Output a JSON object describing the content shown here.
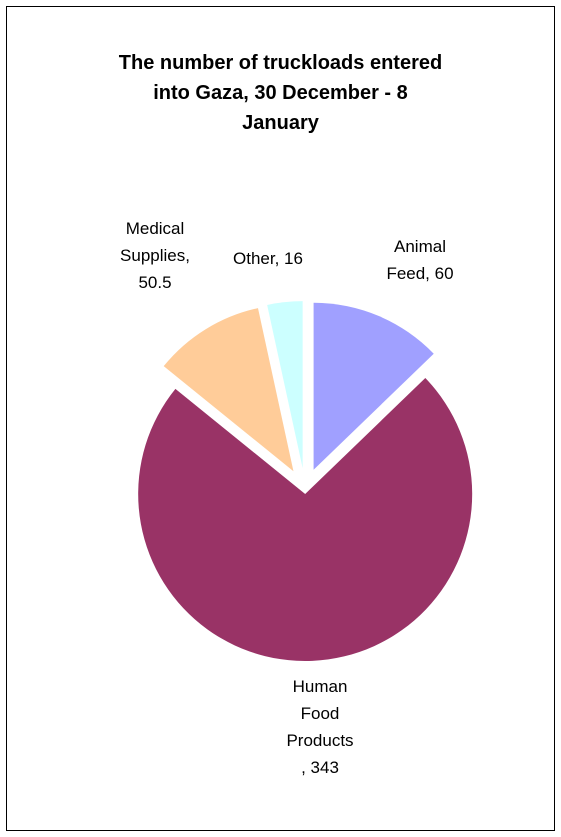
{
  "chart_data": {
    "type": "pie",
    "title": "The number of truckloads entered into Gaza, 30 December - 8 January",
    "title_lines": [
      "The number of truckloads entered",
      "into Gaza, 30 December - 8",
      "January"
    ],
    "legend": "none",
    "slices": [
      {
        "name": "Animal Feed",
        "value": 60,
        "color": "#a0a0ff",
        "label_lines": [
          "Animal",
          "Feed, 60"
        ]
      },
      {
        "name": "Human Food Products",
        "value": 343,
        "color": "#993366",
        "label_lines": [
          "Human",
          "Food",
          "Products",
          ", 343"
        ]
      },
      {
        "name": "Medical Supplies",
        "value": 50.5,
        "color": "#ffcc99",
        "label_lines": [
          "Medical",
          "Supplies,",
          "50.5"
        ]
      },
      {
        "name": "Other",
        "value": 16,
        "color": "#ccffff",
        "label_lines": [
          "Other, 16"
        ]
      }
    ]
  }
}
